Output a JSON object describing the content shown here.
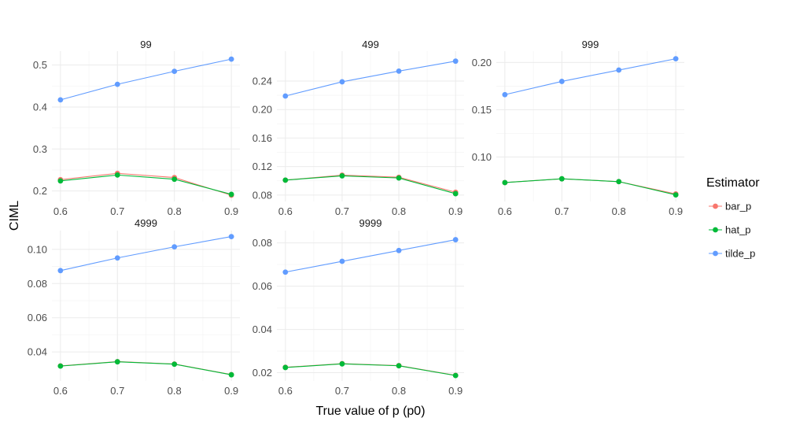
{
  "chart_data": {
    "type": "line",
    "xlabel": "True value of p (p0)",
    "ylabel": "CIML",
    "legend": {
      "title": "Estimator",
      "position": "right"
    },
    "series_names": [
      "bar_p",
      "hat_p",
      "tilde_p"
    ],
    "colors": {
      "bar_p": "#F8766D",
      "hat_p": "#00BA38",
      "tilde_p": "#619CFF"
    },
    "panels": [
      {
        "title": "99",
        "x": [
          0.6,
          0.7,
          0.8,
          0.9
        ],
        "xticks": [
          "0.6",
          "0.7",
          "0.8",
          "0.9"
        ],
        "ylim": [
          0.175,
          0.533
        ],
        "yticks": [
          0.2,
          0.3,
          0.4,
          0.5
        ],
        "ytick_labels": [
          "0.2",
          "0.3",
          "0.4",
          "0.5"
        ],
        "series": [
          {
            "name": "bar_p",
            "values": [
              0.227,
              0.242,
              0.232,
              0.19
            ]
          },
          {
            "name": "hat_p",
            "values": [
              0.224,
              0.238,
              0.228,
              0.192
            ]
          },
          {
            "name": "tilde_p",
            "values": [
              0.417,
              0.454,
              0.485,
              0.514
            ]
          }
        ]
      },
      {
        "title": "499",
        "x": [
          0.6,
          0.7,
          0.8,
          0.9
        ],
        "xticks": [
          "0.6",
          "0.7",
          "0.8",
          "0.9"
        ],
        "ylim": [
          0.071,
          0.282
        ],
        "yticks": [
          0.08,
          0.12,
          0.16,
          0.2,
          0.24
        ],
        "ytick_labels": [
          "0.08",
          "0.12",
          "0.16",
          "0.20",
          "0.24"
        ],
        "series": [
          {
            "name": "bar_p",
            "values": [
              0.101,
              0.108,
              0.105,
              0.084
            ]
          },
          {
            "name": "hat_p",
            "values": [
              0.101,
              0.107,
              0.104,
              0.082
            ]
          },
          {
            "name": "tilde_p",
            "values": [
              0.219,
              0.239,
              0.254,
              0.268
            ]
          }
        ]
      },
      {
        "title": "999",
        "x": [
          0.6,
          0.7,
          0.8,
          0.9
        ],
        "xticks": [
          "0.6",
          "0.7",
          "0.8",
          "0.9"
        ],
        "ylim": [
          0.053,
          0.212
        ],
        "yticks": [
          0.1,
          0.15,
          0.2
        ],
        "ytick_labels": [
          "0.10",
          "0.15",
          "0.20"
        ],
        "series": [
          {
            "name": "bar_p",
            "values": [
              0.073,
              0.077,
              0.074,
              0.061
            ]
          },
          {
            "name": "hat_p",
            "values": [
              0.073,
              0.077,
              0.074,
              0.06
            ]
          },
          {
            "name": "tilde_p",
            "values": [
              0.166,
              0.18,
              0.192,
              0.204
            ]
          }
        ]
      },
      {
        "title": "4999",
        "x": [
          0.6,
          0.7,
          0.8,
          0.9
        ],
        "xticks": [
          "0.6",
          "0.7",
          "0.8",
          "0.9"
        ],
        "ylim": [
          0.023,
          0.111
        ],
        "yticks": [
          0.04,
          0.06,
          0.08,
          0.1
        ],
        "ytick_labels": [
          "0.04",
          "0.06",
          "0.08",
          "0.10"
        ],
        "series": [
          {
            "name": "bar_p",
            "values": [
              0.0318,
              0.0343,
              0.0329,
              0.0267
            ]
          },
          {
            "name": "hat_p",
            "values": [
              0.0317,
              0.0342,
              0.0328,
              0.0266
            ]
          },
          {
            "name": "tilde_p",
            "values": [
              0.0876,
              0.095,
              0.1015,
              0.1075
            ]
          }
        ]
      },
      {
        "title": "9999",
        "x": [
          0.6,
          0.7,
          0.8,
          0.9
        ],
        "xticks": [
          "0.6",
          "0.7",
          "0.8",
          "0.9"
        ],
        "ylim": [
          0.0162,
          0.0857
        ],
        "yticks": [
          0.02,
          0.04,
          0.06,
          0.08
        ],
        "ytick_labels": [
          "0.02",
          "0.04",
          "0.06",
          "0.08"
        ],
        "series": [
          {
            "name": "bar_p",
            "values": [
              0.0225,
              0.0242,
              0.0233,
              0.0188
            ]
          },
          {
            "name": "hat_p",
            "values": [
              0.0224,
              0.0241,
              0.0232,
              0.0187
            ]
          },
          {
            "name": "tilde_p",
            "values": [
              0.0665,
              0.0715,
              0.0765,
              0.0815
            ]
          }
        ]
      }
    ]
  }
}
